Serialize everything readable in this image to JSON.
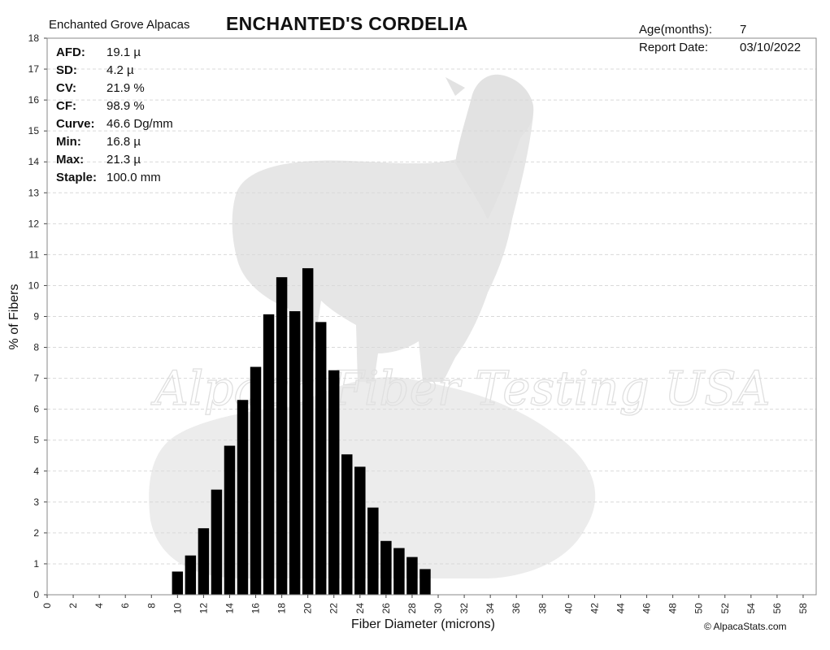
{
  "header": {
    "farm": "Enchanted Grove Alpacas",
    "animal": "ENCHANTED'S CORDELIA",
    "age_label": "Age(months):",
    "age_value": "7",
    "date_label": "Report Date:",
    "date_value": "03/10/2022"
  },
  "stats": [
    {
      "label": "AFD:",
      "value": "19.1 µ"
    },
    {
      "label": "SD:",
      "value": "4.2 µ"
    },
    {
      "label": "CV:",
      "value": "21.9 %"
    },
    {
      "label": "CF:",
      "value": "98.9 %"
    },
    {
      "label": "Curve:",
      "value": "46.6 Dg/mm"
    },
    {
      "label": "Min:",
      "value": "16.8 µ"
    },
    {
      "label": "Max:",
      "value": "21.3 µ"
    },
    {
      "label": "Staple:",
      "value": "100.0 mm"
    }
  ],
  "watermark": "Alpaca Fiber Testing USA",
  "credit": "© AlpacaStats.com",
  "colors": {
    "bar": "#000000",
    "grid": "#d9d9d9",
    "axis": "#444444"
  },
  "chart_data": {
    "type": "bar",
    "xlabel": "Fiber Diameter (microns)",
    "ylabel": "% of Fibers",
    "xlim": [
      0,
      59
    ],
    "ylim": [
      0,
      18
    ],
    "grid": true,
    "x_ticks": [
      0,
      2,
      4,
      6,
      8,
      10,
      12,
      14,
      16,
      18,
      20,
      22,
      24,
      26,
      28,
      30,
      32,
      34,
      36,
      38,
      40,
      42,
      44,
      46,
      48,
      50,
      52,
      54,
      56,
      58
    ],
    "y_ticks": [
      0,
      1,
      2,
      3,
      4,
      5,
      6,
      7,
      8,
      9,
      10,
      11,
      12,
      13,
      14,
      15,
      16,
      17,
      18
    ],
    "x": [
      10,
      11,
      12,
      13,
      14,
      15,
      16,
      17,
      18,
      19,
      20,
      21,
      22,
      23,
      24,
      25,
      26,
      27,
      28,
      29
    ],
    "values": [
      0.75,
      1.27,
      2.15,
      3.4,
      4.82,
      6.3,
      7.37,
      9.07,
      10.27,
      9.17,
      10.56,
      8.82,
      7.26,
      4.54,
      4.14,
      2.82,
      1.74,
      1.51,
      1.22,
      0.83
    ]
  }
}
